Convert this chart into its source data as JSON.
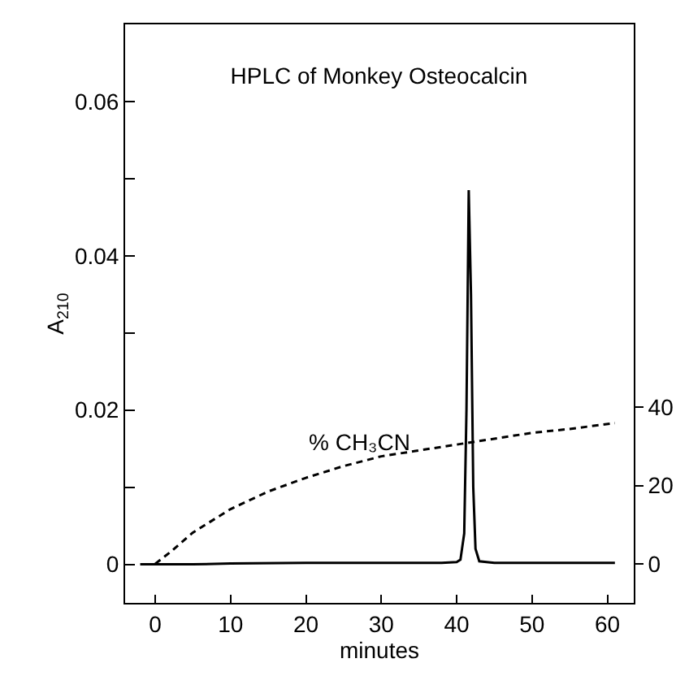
{
  "chart_data": {
    "type": "line",
    "title": "HPLC of Monkey Osteocalcin",
    "xlabel": "minutes",
    "ylabel": "A$_{210}$",
    "xlim": [
      -4,
      63.5
    ],
    "xticks": [
      0,
      10,
      20,
      30,
      40,
      50,
      60
    ],
    "ylim": [
      -0.005,
      0.07
    ],
    "yticks": [
      0,
      {
        "value": 0.01,
        "label": null
      },
      {
        "value": 0.02,
        "label": "0.02"
      },
      {
        "value": 0.03,
        "label": null
      },
      {
        "value": 0.04,
        "label": "0.04"
      },
      {
        "value": 0.05,
        "label": null
      },
      {
        "value": 0.06,
        "label": "0.06"
      }
    ],
    "y2lim": [
      -10,
      138
    ],
    "y2ticks": [
      0,
      20,
      40
    ],
    "grid": false,
    "legend": false,
    "marker": "none",
    "series": [
      {
        "color": "#000000",
        "line_style": "solid",
        "x": [
          -2,
          5,
          10,
          20,
          30,
          38,
          40,
          40.5,
          41,
          41.3,
          41.6,
          41.9,
          42.2,
          42.5,
          43,
          45,
          50,
          55,
          61
        ],
        "values": [
          0,
          0,
          0.0001,
          0.0002,
          0.0002,
          0.0002,
          0.0003,
          0.0006,
          0.004,
          0.02,
          0.0485,
          0.035,
          0.01,
          0.002,
          0.0004,
          0.0002,
          0.0002,
          0.0002,
          0.0002
        ]
      },
      {
        "name": "% CH₃CN",
        "color": "#000000",
        "line_style": "dashed",
        "axis": "y2",
        "x": [
          0,
          2,
          5,
          10,
          15,
          20,
          25,
          30,
          35,
          40,
          45,
          50,
          55,
          61
        ],
        "values": [
          0,
          3,
          8,
          14,
          18.5,
          22,
          25,
          27.5,
          29,
          30.5,
          32,
          33.5,
          34.5,
          36
        ]
      }
    ]
  }
}
